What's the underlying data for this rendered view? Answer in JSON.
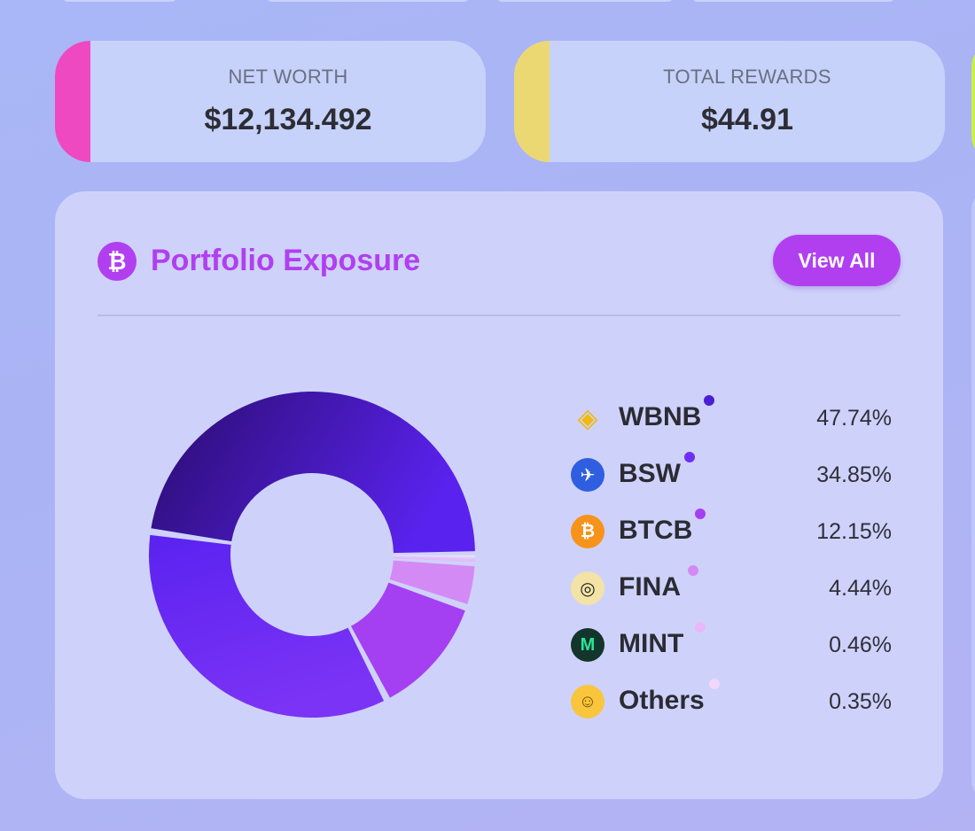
{
  "stats": {
    "net_worth": {
      "label": "NET WORTH",
      "value": "$12,134.492",
      "accent": "#ee49c1"
    },
    "total_rewards": {
      "label": "TOTAL REWARDS",
      "value": "$44.91",
      "accent": "#ebd873"
    }
  },
  "panel": {
    "icon": "bitcoin-icon",
    "title": "Portfolio Exposure",
    "view_all_label": "View All",
    "accent": "#b13ff0"
  },
  "chart_data": {
    "type": "pie",
    "categories": [
      "WBNB",
      "BSW",
      "BTCB",
      "FINA",
      "MINT",
      "Others"
    ],
    "values": [
      47.74,
      34.85,
      12.15,
      4.44,
      0.46,
      0.35
    ]
  },
  "legend": [
    {
      "name": "WBNB",
      "pct": "47.74%",
      "icon": "bnb-icon",
      "color": "#4a1fd6"
    },
    {
      "name": "BSW",
      "pct": "34.85%",
      "icon": "biswap-icon",
      "color": "#6f2ef5"
    },
    {
      "name": "BTCB",
      "pct": "12.15%",
      "icon": "bitcoin-icon",
      "color": "#a53ff2"
    },
    {
      "name": "FINA",
      "pct": "4.44%",
      "icon": "fina-icon",
      "color": "#d48af5"
    },
    {
      "name": "MINT",
      "pct": "0.46%",
      "icon": "mint-icon",
      "color": "#e8b8f8"
    },
    {
      "name": "Others",
      "pct": "0.35%",
      "icon": "thinking-face-icon",
      "color": "#f1d8fb"
    }
  ]
}
